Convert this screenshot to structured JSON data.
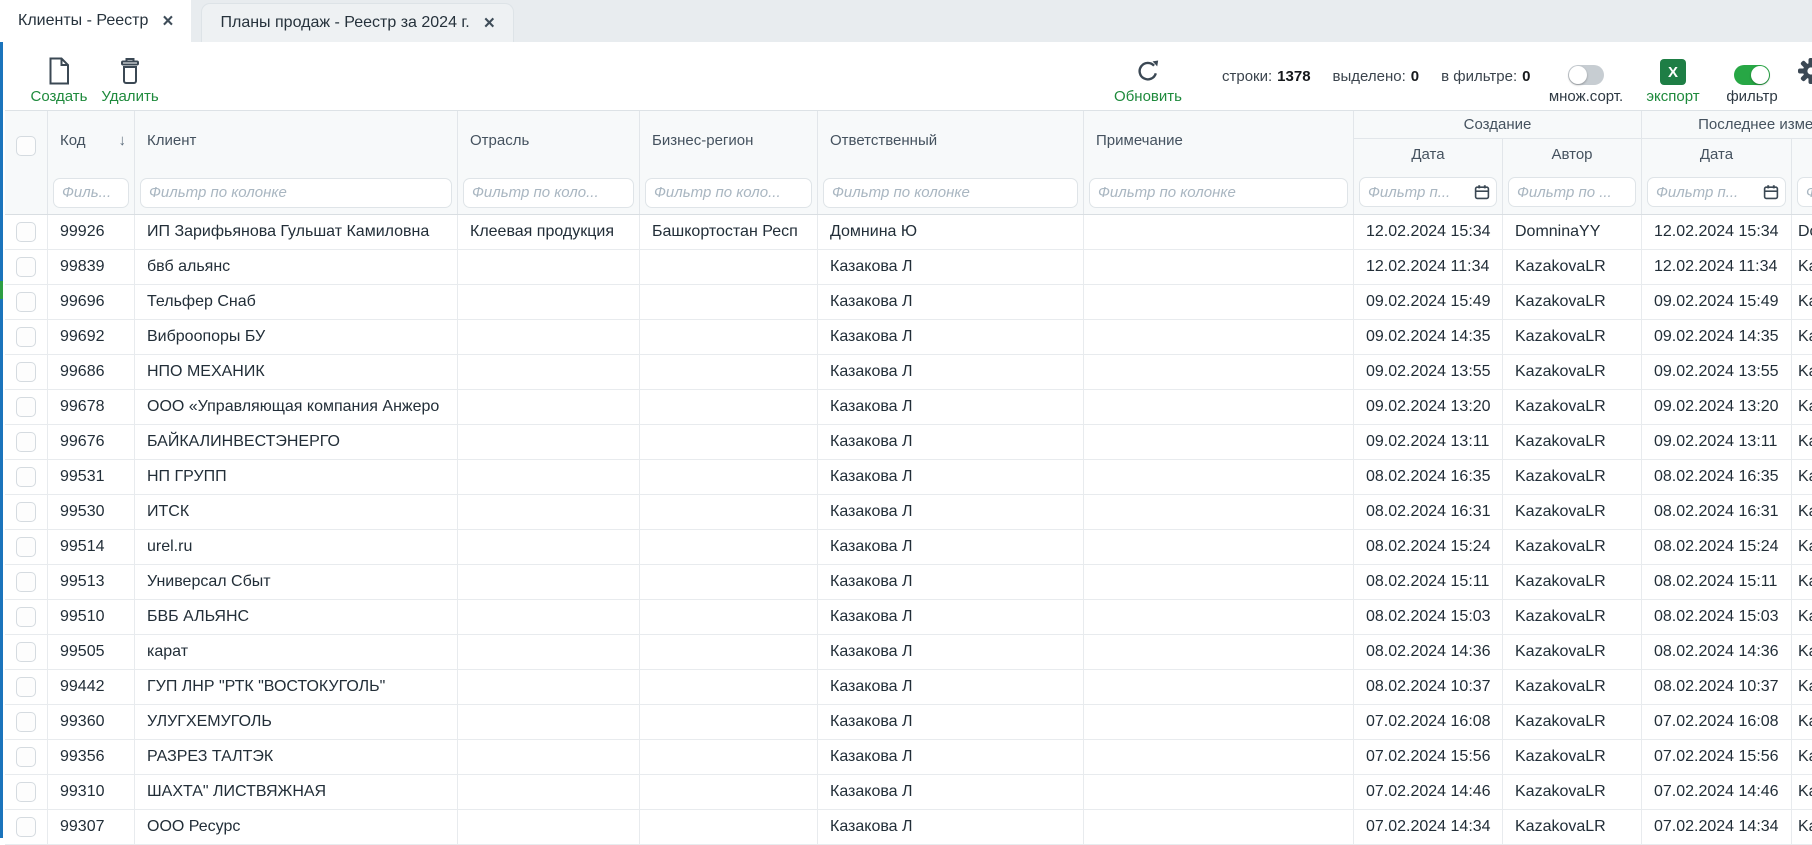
{
  "tabs": [
    {
      "label": "Клиенты - Реестр",
      "close": "×",
      "active": true
    },
    {
      "label": "Планы продаж - Реестр за 2024 г.",
      "close": "×",
      "active": false
    }
  ],
  "toolbar": {
    "create_label": "Создать",
    "delete_label": "Удалить",
    "refresh_label": "Обновить",
    "stats": {
      "rows_label": "строки:",
      "rows_value": "1378",
      "selected_label": "выделено:",
      "selected_value": "0",
      "filtered_label": "в фильтре:",
      "filtered_value": "0"
    },
    "multisort_label": "множ.сорт.",
    "export_label": "экспорт",
    "export_icon_letter": "X",
    "filter_label": "фильтр"
  },
  "colors": {
    "accent_green": "#1e8a3c",
    "toggle_on_green": "#27a745",
    "excel_green": "#1e7e45",
    "edge_blue": "#1b74bc"
  },
  "table": {
    "sort_icon": "↓",
    "group_headers": {
      "creation": "Создание",
      "last_change": "Последнее изменение"
    },
    "columns": [
      {
        "label": "Код"
      },
      {
        "label": "Клиент"
      },
      {
        "label": "Отрасль"
      },
      {
        "label": "Бизнес-регион"
      },
      {
        "label": "Ответственный"
      },
      {
        "label": "Примечание"
      },
      {
        "label": "Дата"
      },
      {
        "label": "Автор"
      },
      {
        "label": "Дата"
      },
      {
        "label": ""
      }
    ],
    "filters": [
      "Филь...",
      "Фильтр по колонке",
      "Фильтр по коло...",
      "Фильтр по коло...",
      "Фильтр по колонке",
      "Фильтр по колонке",
      "Фильтр п...",
      "Фильтр по ...",
      "Фильтр п...",
      "Фильтр по ..."
    ],
    "rows": [
      {
        "code": "99926",
        "client": "ИП Зарифьянова Гульшат Камиловна",
        "industry": "Клеевая продукция",
        "region": "Башкортостан Респ",
        "responsible": "Домнина Ю",
        "note": "",
        "created_date": "12.02.2024 15:34",
        "created_author": "DomninaYY",
        "modified_date": "12.02.2024 15:34",
        "modified_author": "DomninaYY"
      },
      {
        "code": "99839",
        "client": "бвб альянс",
        "industry": "",
        "region": "",
        "responsible": "Казакова Л",
        "note": "",
        "created_date": "12.02.2024 11:34",
        "created_author": "KazakovaLR",
        "modified_date": "12.02.2024 11:34",
        "modified_author": "KazakovaLR"
      },
      {
        "code": "99696",
        "client": "Тельфер Снаб",
        "industry": "",
        "region": "",
        "responsible": "Казакова Л",
        "note": "",
        "created_date": "09.02.2024 15:49",
        "created_author": "KazakovaLR",
        "modified_date": "09.02.2024 15:49",
        "modified_author": "KazakovaLR"
      },
      {
        "code": "99692",
        "client": "Виброопоры БУ",
        "industry": "",
        "region": "",
        "responsible": "Казакова Л",
        "note": "",
        "created_date": "09.02.2024 14:35",
        "created_author": "KazakovaLR",
        "modified_date": "09.02.2024 14:35",
        "modified_author": "KazakovaLR"
      },
      {
        "code": "99686",
        "client": "НПО МЕХАНИК",
        "industry": "",
        "region": "",
        "responsible": "Казакова Л",
        "note": "",
        "created_date": "09.02.2024 13:55",
        "created_author": "KazakovaLR",
        "modified_date": "09.02.2024 13:55",
        "modified_author": "KazakovaLR"
      },
      {
        "code": "99678",
        "client": "ООО «Управляющая компания Анжеро",
        "industry": "",
        "region": "",
        "responsible": "Казакова Л",
        "note": "",
        "created_date": "09.02.2024 13:20",
        "created_author": "KazakovaLR",
        "modified_date": "09.02.2024 13:20",
        "modified_author": "KazakovaLR"
      },
      {
        "code": "99676",
        "client": "БАЙКАЛИНВЕСТЭНЕРГО",
        "industry": "",
        "region": "",
        "responsible": "Казакова Л",
        "note": "",
        "created_date": "09.02.2024 13:11",
        "created_author": "KazakovaLR",
        "modified_date": "09.02.2024 13:11",
        "modified_author": "KazakovaLR"
      },
      {
        "code": "99531",
        "client": "НП ГРУПП",
        "industry": "",
        "region": "",
        "responsible": "Казакова Л",
        "note": "",
        "created_date": "08.02.2024 16:35",
        "created_author": "KazakovaLR",
        "modified_date": "08.02.2024 16:35",
        "modified_author": "KazakovaLR"
      },
      {
        "code": "99530",
        "client": "ИТСК",
        "industry": "",
        "region": "",
        "responsible": "Казакова Л",
        "note": "",
        "created_date": "08.02.2024 16:31",
        "created_author": "KazakovaLR",
        "modified_date": "08.02.2024 16:31",
        "modified_author": "KazakovaLR"
      },
      {
        "code": "99514",
        "client": "urel.ru",
        "industry": "",
        "region": "",
        "responsible": "Казакова Л",
        "note": "",
        "created_date": "08.02.2024 15:24",
        "created_author": "KazakovaLR",
        "modified_date": "08.02.2024 15:24",
        "modified_author": "KazakovaLR"
      },
      {
        "code": "99513",
        "client": "Универсал Сбыт",
        "industry": "",
        "region": "",
        "responsible": "Казакова Л",
        "note": "",
        "created_date": "08.02.2024 15:11",
        "created_author": "KazakovaLR",
        "modified_date": "08.02.2024 15:11",
        "modified_author": "KazakovaLR"
      },
      {
        "code": "99510",
        "client": "БВБ АЛЬЯНС",
        "industry": "",
        "region": "",
        "responsible": "Казакова Л",
        "note": "",
        "created_date": "08.02.2024 15:03",
        "created_author": "KazakovaLR",
        "modified_date": "08.02.2024 15:03",
        "modified_author": "KazakovaLR"
      },
      {
        "code": "99505",
        "client": "карат",
        "industry": "",
        "region": "",
        "responsible": "Казакова Л",
        "note": "",
        "created_date": "08.02.2024 14:36",
        "created_author": "KazakovaLR",
        "modified_date": "08.02.2024 14:36",
        "modified_author": "KazakovaLR"
      },
      {
        "code": "99442",
        "client": "ГУП ЛНР \"РТК \"ВОСТОКУГОЛЬ\"",
        "industry": "",
        "region": "",
        "responsible": "Казакова Л",
        "note": "",
        "created_date": "08.02.2024 10:37",
        "created_author": "KazakovaLR",
        "modified_date": "08.02.2024 10:37",
        "modified_author": "KazakovaLR"
      },
      {
        "code": "99360",
        "client": "УЛУГХЕМУГОЛЬ",
        "industry": "",
        "region": "",
        "responsible": "Казакова Л",
        "note": "",
        "created_date": "07.02.2024 16:08",
        "created_author": "KazakovaLR",
        "modified_date": "07.02.2024 16:08",
        "modified_author": "KazakovaLR"
      },
      {
        "code": "99356",
        "client": "РАЗРЕЗ ТАЛТЭК",
        "industry": "",
        "region": "",
        "responsible": "Казакова Л",
        "note": "",
        "created_date": "07.02.2024 15:56",
        "created_author": "KazakovaLR",
        "modified_date": "07.02.2024 15:56",
        "modified_author": "KazakovaLR"
      },
      {
        "code": "99310",
        "client": "ШАХТА\" ЛИСТВЯЖНАЯ",
        "industry": "",
        "region": "",
        "responsible": "Казакова Л",
        "note": "",
        "created_date": "07.02.2024 14:46",
        "created_author": "KazakovaLR",
        "modified_date": "07.02.2024 14:46",
        "modified_author": "KazakovaLR"
      },
      {
        "code": "99307",
        "client": "ООО Ресурс",
        "industry": "",
        "region": "",
        "responsible": "Казакова Л",
        "note": "",
        "created_date": "07.02.2024 14:34",
        "created_author": "KazakovaLR",
        "modified_date": "07.02.2024 14:34",
        "modified_author": "KazakovaLR"
      }
    ]
  }
}
